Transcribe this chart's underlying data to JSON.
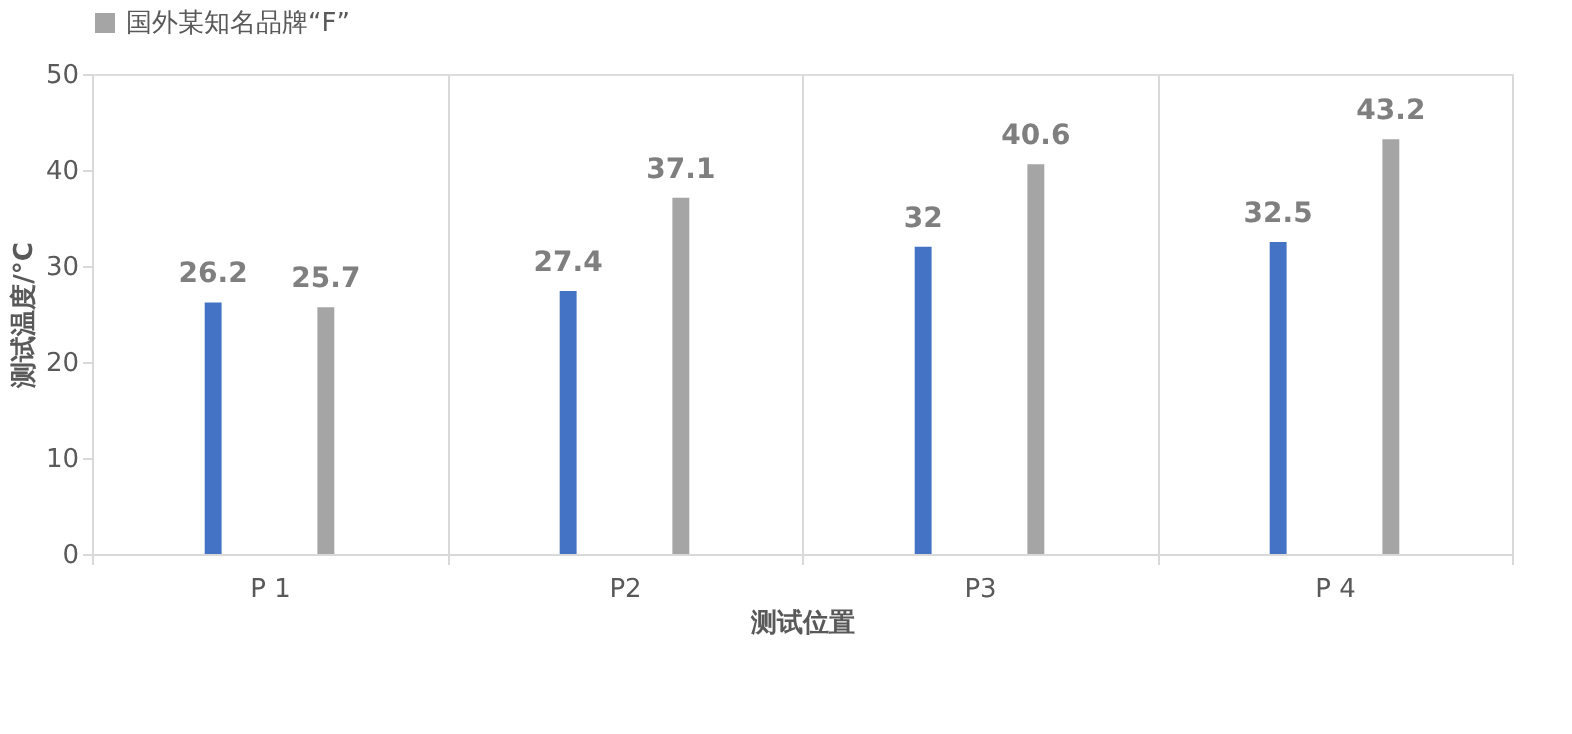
{
  "chart_data": {
    "type": "bar",
    "xlabel": "测试位置",
    "ylabel": "测试温度/°C",
    "categories": [
      "P 1",
      "P2",
      "P3",
      "P 4"
    ],
    "series": [
      {
        "color": "#4472c4",
        "values": [
          26.2,
          27.4,
          32,
          32.5
        ]
      },
      {
        "name": "国外某知名品牌“F”",
        "color": "#a5a5a5",
        "values": [
          25.7,
          37.1,
          40.6,
          43.2
        ]
      }
    ],
    "ylim": [
      0,
      50
    ],
    "yticks": [
      0,
      10,
      20,
      30,
      40,
      50
    ],
    "grid": "x",
    "legend": "top",
    "data_labels": true
  }
}
